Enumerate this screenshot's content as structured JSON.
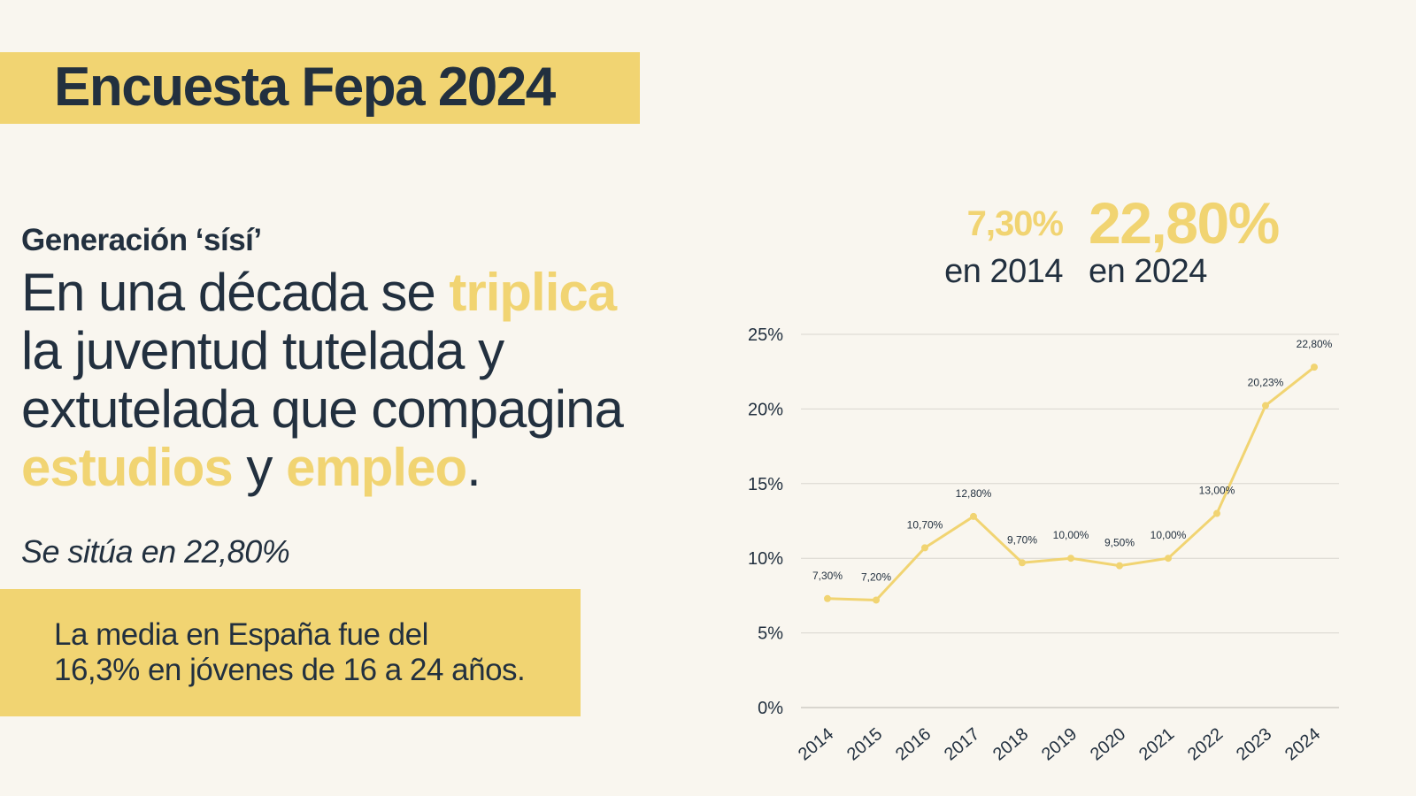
{
  "header": {
    "title": "Encuesta Fepa 2024"
  },
  "left": {
    "kicker": "Generación ‘sísí’",
    "headline": {
      "l1a": "En una década se ",
      "l1b": "triplica",
      "l2": "la juventud tutelada y",
      "l3": "extutelada que  compagina",
      "l4a": "estudios",
      "l4b": " y ",
      "l4c": "empleo",
      "l4d": "."
    },
    "subnote": "Se sitúa en 22,80%",
    "note": {
      "line1": "La media en España fue del",
      "line2": "16,3% en jóvenes de 16 a 24 años."
    }
  },
  "stats": {
    "start_value": "7,30%",
    "start_caption": "en 2014",
    "end_value": "22,80%",
    "end_caption": "en 2024"
  },
  "colors": {
    "accent": "#f1d472",
    "text": "#22303f",
    "background": "#f9f6ef",
    "grid": "#d9d6cf"
  },
  "chart_data": {
    "type": "line",
    "categories": [
      "2014",
      "2015",
      "2016",
      "2017",
      "2018",
      "2019",
      "2020",
      "2021",
      "2022",
      "2023",
      "2024"
    ],
    "series": [
      {
        "values": [
          7.3,
          7.2,
          10.7,
          12.8,
          9.7,
          10.0,
          9.5,
          10.0,
          13.0,
          20.23,
          22.8
        ]
      }
    ],
    "data_labels": [
      "7,30%",
      "7,20%",
      "10,70%",
      "12,80%",
      "9,70%",
      "10,00%",
      "9,50%",
      "10,00%",
      "13,00%",
      "20,23%",
      "22,80%"
    ],
    "yticks": [
      0,
      5,
      10,
      15,
      20,
      25
    ],
    "ytick_labels": [
      "0%",
      "5%",
      "10%",
      "15%",
      "20%",
      "25%"
    ],
    "ylim": [
      0,
      25
    ],
    "grid": true,
    "legend": "none"
  }
}
